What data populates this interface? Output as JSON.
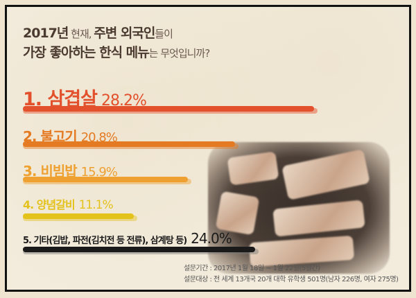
{
  "title": {
    "line1": [
      {
        "text": "2017년",
        "bold": true
      },
      {
        "text": " 현재, ",
        "bold": false
      },
      {
        "text": "주변 외국인",
        "bold": true
      },
      {
        "text": "들이",
        "bold": false
      }
    ],
    "line2": [
      {
        "text": "가장 좋아하는 한식 메뉴",
        "bold": true
      },
      {
        "text": "는 무엇입니까?",
        "bold": false
      }
    ]
  },
  "chart_data": {
    "type": "bar",
    "orientation": "horizontal",
    "categories": [
      "1. 삼겹살",
      "2. 불고기",
      "3. 비빔밥",
      "4. 양념갈비",
      "5. 기타(김밥, 파전(김치전 등 전류), 삼계탕 등)"
    ],
    "values": [
      28.2,
      20.8,
      15.9,
      11.1,
      24.0
    ],
    "value_labels": [
      "28.2%",
      "20.8%",
      "15.9%",
      "11.1%",
      "24.0%"
    ],
    "colors": [
      "#e2502c",
      "#e47a22",
      "#eea031",
      "#e4c21c",
      "#1a1a1a"
    ],
    "grid": false
  },
  "notes": {
    "period": "설문기간 : 2017년 1월 18일 ~ 1월 22일(5일간)",
    "target": "설문대상 : 전 세계 13개국 20개 대학 유학생 501명(남자 226명, 여자 275명)"
  }
}
